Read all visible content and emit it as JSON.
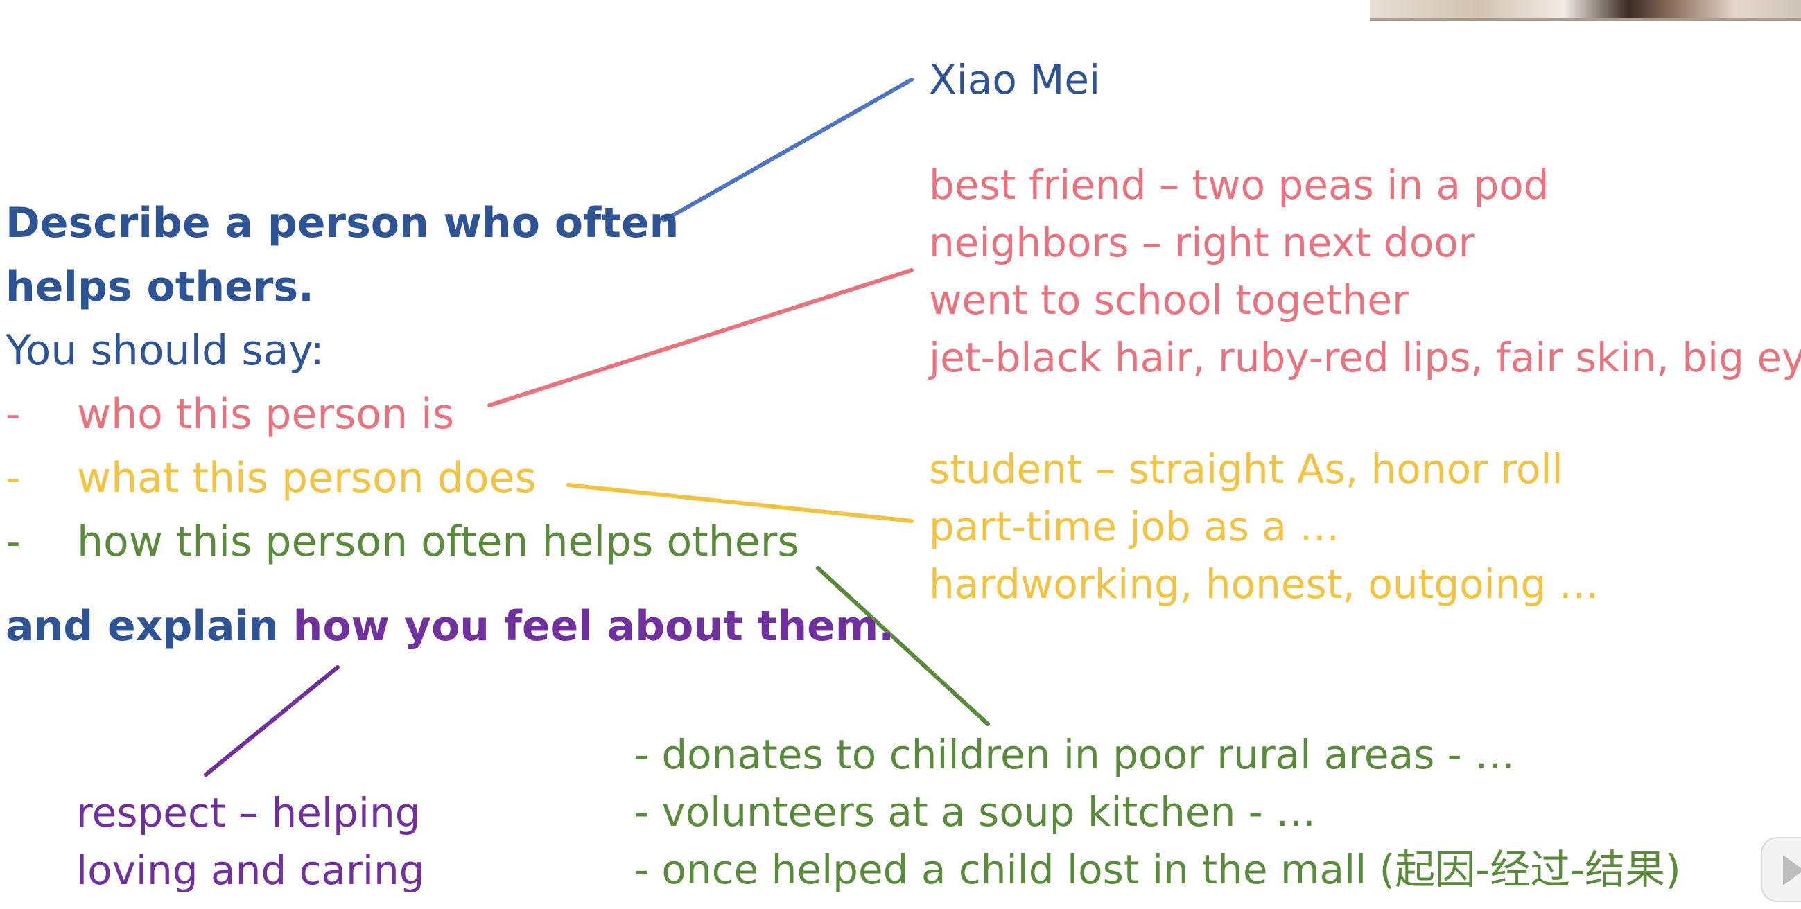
{
  "prompt": {
    "title_line1": "Describe a person who often",
    "title_line2": "helps others.",
    "you_should_say": "You should say:",
    "bullets": [
      {
        "dash": "-",
        "text": "who this person is"
      },
      {
        "dash": "-",
        "text": "what this person does"
      },
      {
        "dash": "-",
        "text": "how this person often helps others"
      }
    ],
    "explain_prefix": "and explain ",
    "explain_highlight": "how you feel about them."
  },
  "notes": {
    "name": "Xiao Mei",
    "who": [
      "best friend – two peas in a pod",
      "neighbors – right next door",
      "went to school together",
      "jet-black hair, ruby-red lips, fair skin, big eyes"
    ],
    "does": [
      "student – straight As, honor roll",
      "part-time job as a …",
      "hardworking, honest, outgoing …"
    ],
    "feel": [
      "respect – helping",
      "loving and caring"
    ],
    "helps": [
      "- donates to children in poor rural areas - …",
      "- volunteers at a soup kitchen - …",
      "- once helped a child lost in the mall (起因-经过-结果)"
    ]
  },
  "colors": {
    "blue": "#2f5496",
    "pink": "#e8737e",
    "gold": "#f2c343",
    "green": "#5a8a3c",
    "purple": "#7030a0"
  }
}
